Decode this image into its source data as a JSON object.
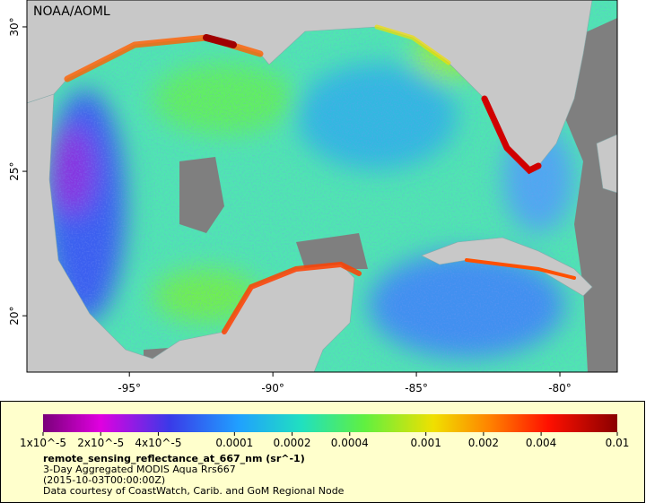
{
  "map": {
    "attribution": "NOAA/AOML",
    "xlim": [
      -98.57,
      -78.0
    ],
    "ylim": [
      18.05,
      30.93
    ],
    "xticks": [
      {
        "value": -95,
        "label": "-95°"
      },
      {
        "value": -90,
        "label": "-90°"
      },
      {
        "value": -85,
        "label": "-85°"
      },
      {
        "value": -80,
        "label": "-80°"
      }
    ],
    "yticks": [
      {
        "value": 20,
        "label": "20°"
      },
      {
        "value": 25,
        "label": "25°"
      },
      {
        "value": 30,
        "label": "30°"
      }
    ]
  },
  "colorbar": {
    "log": true,
    "lim": [
      1e-05,
      0.01
    ],
    "ticks": [
      {
        "value": 1e-05,
        "label": "1x10^-5"
      },
      {
        "value": 2e-05,
        "label": "2x10^-5"
      },
      {
        "value": 4e-05,
        "label": "4x10^-5"
      },
      0.0001,
      0.0002,
      0.0004,
      0.001,
      0.002,
      0.004,
      0.01
    ]
  },
  "legend": {
    "variable": "remote_sensing_reflectance_at_667_nm (sr^-1)",
    "description": "3-Day Aggregated MODIS Aqua Rrs667",
    "time": "(2015-10-03T00:00:00Z)",
    "credit": "Data courtesy of CoastWatch, Carib. and GoM Regional Node"
  }
}
